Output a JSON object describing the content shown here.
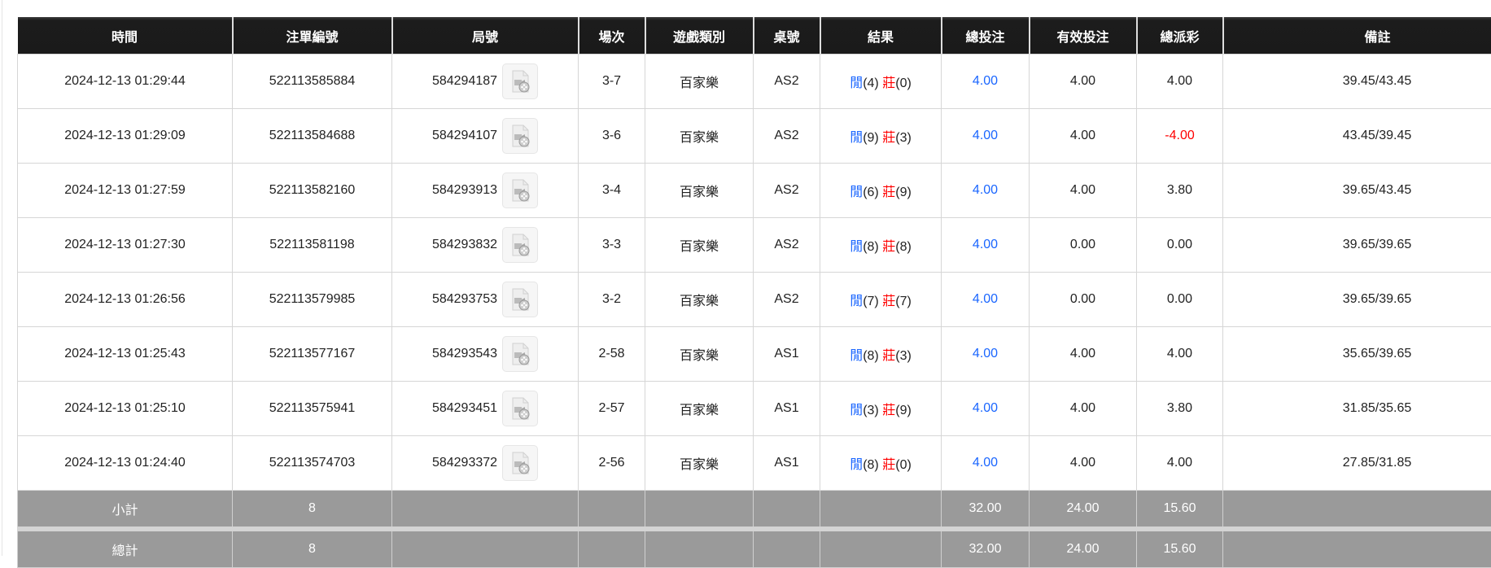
{
  "table": {
    "headers": [
      "時間",
      "注單編號",
      "局號",
      "場次",
      "遊戲類別",
      "桌號",
      "結果",
      "總投注",
      "有效投注",
      "總派彩",
      "備註"
    ],
    "rows": [
      {
        "time": "2024-12-13 01:29:44",
        "bet_id": "522113585884",
        "round": "584294187",
        "session": "3-7",
        "game": "百家樂",
        "table": "AS2",
        "player_label": "閒",
        "player": "(4)",
        "banker_label": "莊",
        "banker": "(0)",
        "total_bet": "4.00",
        "valid_bet": "4.00",
        "payout": "4.00",
        "payout_negative": false,
        "note": "39.45/43.45"
      },
      {
        "time": "2024-12-13 01:29:09",
        "bet_id": "522113584688",
        "round": "584294107",
        "session": "3-6",
        "game": "百家樂",
        "table": "AS2",
        "player_label": "閒",
        "player": "(9)",
        "banker_label": "莊",
        "banker": "(3)",
        "total_bet": "4.00",
        "valid_bet": "4.00",
        "payout": "-4.00",
        "payout_negative": true,
        "note": "43.45/39.45"
      },
      {
        "time": "2024-12-13 01:27:59",
        "bet_id": "522113582160",
        "round": "584293913",
        "session": "3-4",
        "game": "百家樂",
        "table": "AS2",
        "player_label": "閒",
        "player": "(6)",
        "banker_label": "莊",
        "banker": "(9)",
        "total_bet": "4.00",
        "valid_bet": "4.00",
        "payout": "3.80",
        "payout_negative": false,
        "note": "39.65/43.45"
      },
      {
        "time": "2024-12-13 01:27:30",
        "bet_id": "522113581198",
        "round": "584293832",
        "session": "3-3",
        "game": "百家樂",
        "table": "AS2",
        "player_label": "閒",
        "player": "(8)",
        "banker_label": "莊",
        "banker": "(8)",
        "total_bet": "4.00",
        "valid_bet": "0.00",
        "payout": "0.00",
        "payout_negative": false,
        "note": "39.65/39.65"
      },
      {
        "time": "2024-12-13 01:26:56",
        "bet_id": "522113579985",
        "round": "584293753",
        "session": "3-2",
        "game": "百家樂",
        "table": "AS2",
        "player_label": "閒",
        "player": "(7)",
        "banker_label": "莊",
        "banker": "(7)",
        "total_bet": "4.00",
        "valid_bet": "0.00",
        "payout": "0.00",
        "payout_negative": false,
        "note": "39.65/39.65"
      },
      {
        "time": "2024-12-13 01:25:43",
        "bet_id": "522113577167",
        "round": "584293543",
        "session": "2-58",
        "game": "百家樂",
        "table": "AS1",
        "player_label": "閒",
        "player": "(8)",
        "banker_label": "莊",
        "banker": "(3)",
        "total_bet": "4.00",
        "valid_bet": "4.00",
        "payout": "4.00",
        "payout_negative": false,
        "note": "35.65/39.65"
      },
      {
        "time": "2024-12-13 01:25:10",
        "bet_id": "522113575941",
        "round": "584293451",
        "session": "2-57",
        "game": "百家樂",
        "table": "AS1",
        "player_label": "閒",
        "player": "(3)",
        "banker_label": "莊",
        "banker": "(9)",
        "total_bet": "4.00",
        "valid_bet": "4.00",
        "payout": "3.80",
        "payout_negative": false,
        "note": "31.85/35.65"
      },
      {
        "time": "2024-12-13 01:24:40",
        "bet_id": "522113574703",
        "round": "584293372",
        "session": "2-56",
        "game": "百家樂",
        "table": "AS1",
        "player_label": "閒",
        "player": "(8)",
        "banker_label": "莊",
        "banker": "(0)",
        "total_bet": "4.00",
        "valid_bet": "4.00",
        "payout": "4.00",
        "payout_negative": false,
        "note": "27.85/31.85"
      }
    ],
    "subtotal": {
      "label": "小計",
      "count": "8",
      "total_bet": "32.00",
      "valid_bet": "24.00",
      "payout": "15.60"
    },
    "total": {
      "label": "總計",
      "count": "8",
      "total_bet": "32.00",
      "valid_bet": "24.00",
      "payout": "15.60"
    }
  },
  "icons": {
    "replay": "video-replay-icon"
  },
  "colors": {
    "header_bg": "#1a1a1a",
    "summary_bg": "#9a9a9a",
    "player": "#1a66ff",
    "banker": "#ff0000",
    "negative": "#ff0000",
    "total_bet": "#1a66ff"
  }
}
